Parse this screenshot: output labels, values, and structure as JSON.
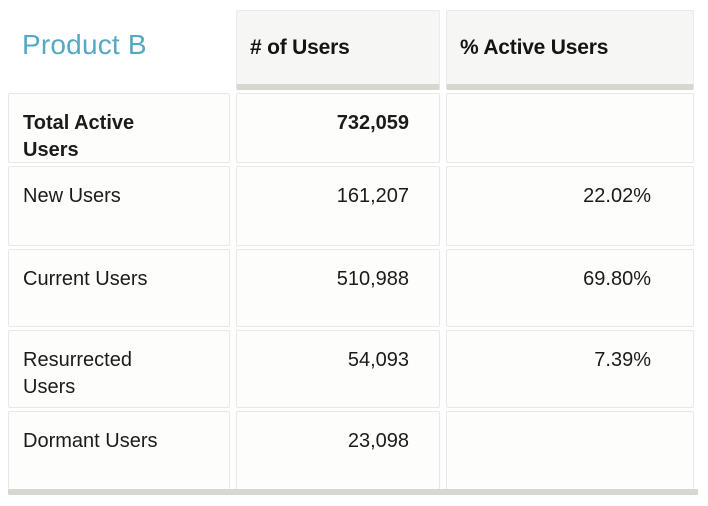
{
  "table": {
    "title": "Product B",
    "accent_color": "#55a8c4",
    "columns": [
      {
        "label": "# of Users"
      },
      {
        "label": "% Active Users"
      }
    ],
    "rows": [
      {
        "label": "Total Active Users",
        "users": "732,059",
        "pct": ""
      },
      {
        "label": "New Users",
        "users": "161,207",
        "pct": "22.02%"
      },
      {
        "label": "Current Users",
        "users": "510,988",
        "pct": "69.80%"
      },
      {
        "label": "Resurrected Users",
        "users": "54,093",
        "pct": "7.39%"
      },
      {
        "label": "Dormant Users",
        "users": "23,098",
        "pct": ""
      }
    ]
  }
}
